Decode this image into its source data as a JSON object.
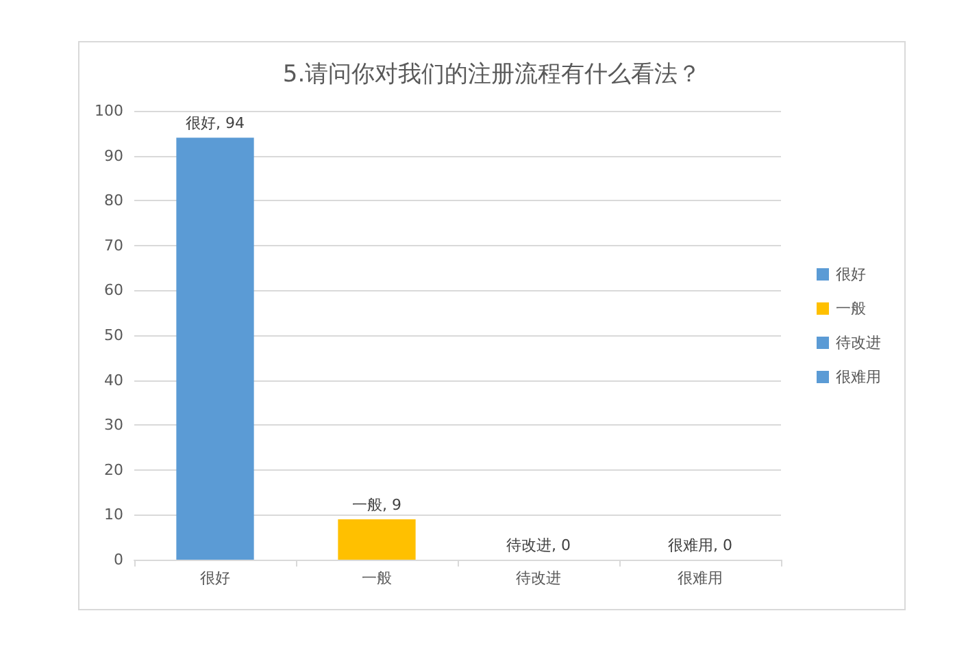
{
  "chart_data": {
    "type": "bar",
    "title": "5.请问你对我们的注册流程有什么看法？",
    "categories": [
      "很好",
      "一般",
      "待改进",
      "很难用"
    ],
    "series": [
      {
        "name": "很好",
        "color": "#5b9bd5",
        "values": [
          94,
          null,
          null,
          null
        ],
        "value_labels": [
          "很好, 94",
          null,
          null,
          null
        ]
      },
      {
        "name": "一般",
        "color": "#ffc000",
        "values": [
          null,
          9,
          null,
          null
        ],
        "value_labels": [
          null,
          "一般, 9",
          null,
          null
        ]
      },
      {
        "name": "待改进",
        "color": "#5b9bd5",
        "values": [
          null,
          null,
          0,
          null
        ],
        "value_labels": [
          null,
          null,
          "待改进, 0",
          null
        ]
      },
      {
        "name": "很难用",
        "color": "#5b9bd5",
        "values": [
          null,
          null,
          null,
          0
        ],
        "value_labels": [
          null,
          null,
          null,
          "很难用, 0"
        ]
      }
    ],
    "ylim": [
      0,
      100
    ],
    "yticks": [
      0,
      10,
      20,
      30,
      40,
      50,
      60,
      70,
      80,
      90,
      100
    ],
    "grid": "y",
    "legend": "right"
  }
}
